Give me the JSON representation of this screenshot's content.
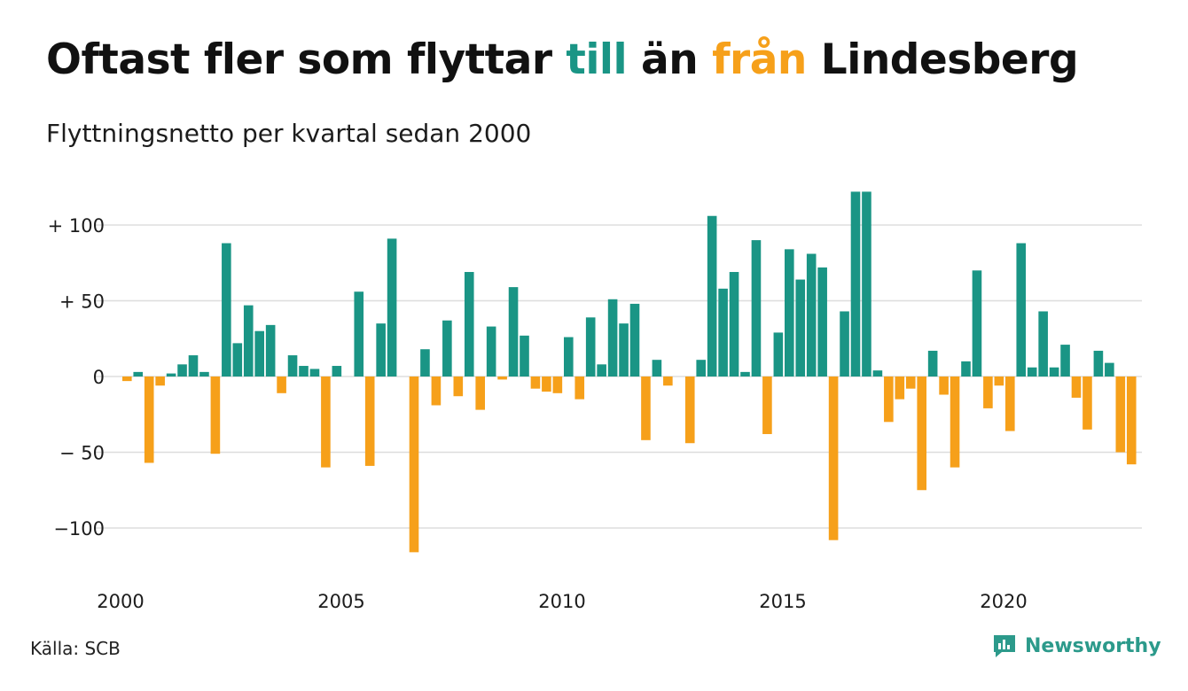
{
  "title": {
    "part1": "Oftast fler som flyttar ",
    "till": "till",
    "part2": " än ",
    "fran": "från",
    "part3": " Lindesberg"
  },
  "subtitle": "Flyttningsnetto per kvartal sedan 2000",
  "source": "Källa: SCB",
  "brand": "Newsworthy",
  "colors": {
    "positive": "#1a9585",
    "negative": "#f6a01a",
    "grid": "#dddddd"
  },
  "chart_data": {
    "type": "bar",
    "x_start": "2000 Q1",
    "x_tick_labels": [
      "2000",
      "2005",
      "2010",
      "2015",
      "2020"
    ],
    "y_tick_labels": [
      "+ 100",
      "+  50",
      "0",
      "− 50",
      "−100"
    ],
    "y_ticks": [
      100,
      50,
      0,
      -50,
      -100
    ],
    "ylim": [
      -120,
      120
    ],
    "grid": true,
    "values": [
      -3,
      3,
      -57,
      -6,
      2,
      8,
      14,
      3,
      -51,
      88,
      22,
      47,
      30,
      34,
      -11,
      14,
      7,
      5,
      -60,
      7,
      0,
      56,
      -59,
      35,
      91,
      0,
      -116,
      18,
      -19,
      37,
      -13,
      69,
      -22,
      33,
      -2,
      59,
      27,
      -8,
      -10,
      -11,
      26,
      -15,
      39,
      8,
      51,
      35,
      48,
      -42,
      11,
      -6,
      0,
      -44,
      11,
      106,
      58,
      69,
      3,
      90,
      -38,
      29,
      84,
      64,
      81,
      72,
      -108,
      43,
      122,
      122,
      4,
      -30,
      -15,
      -8,
      -75,
      17,
      -12,
      -60,
      10,
      70,
      -21,
      -6,
      -36,
      88,
      6,
      43,
      6,
      21,
      -14,
      -35,
      17,
      9,
      -50,
      -58
    ]
  }
}
